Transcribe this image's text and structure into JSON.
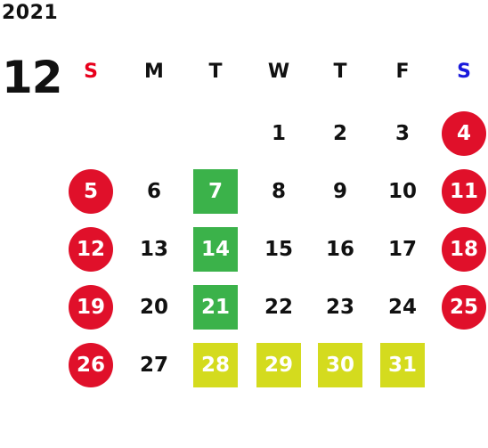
{
  "calendar": {
    "year": "2021",
    "month": "12",
    "weekdays": [
      "S",
      "M",
      "T",
      "W",
      "T",
      "F",
      "S"
    ],
    "colors": {
      "sunday_header": "#e8001c",
      "saturday_header": "#1a1adc",
      "weekday_header": "#111111",
      "holiday_circle": "#e0102a",
      "green_highlight": "#3bb24a",
      "lime_highlight": "#d4db1e",
      "text": "#111111"
    },
    "days": [
      {
        "label": "1",
        "col": 3,
        "week": 0,
        "style": "plain"
      },
      {
        "label": "2",
        "col": 4,
        "week": 0,
        "style": "plain"
      },
      {
        "label": "3",
        "col": 5,
        "week": 0,
        "style": "plain"
      },
      {
        "label": "4",
        "col": 6,
        "week": 0,
        "style": "circle"
      },
      {
        "label": "5",
        "col": 0,
        "week": 1,
        "style": "circle"
      },
      {
        "label": "6",
        "col": 1,
        "week": 1,
        "style": "plain"
      },
      {
        "label": "7",
        "col": 2,
        "week": 1,
        "style": "green"
      },
      {
        "label": "8",
        "col": 3,
        "week": 1,
        "style": "plain"
      },
      {
        "label": "9",
        "col": 4,
        "week": 1,
        "style": "plain"
      },
      {
        "label": "10",
        "col": 5,
        "week": 1,
        "style": "plain"
      },
      {
        "label": "11",
        "col": 6,
        "week": 1,
        "style": "circle"
      },
      {
        "label": "12",
        "col": 0,
        "week": 2,
        "style": "circle"
      },
      {
        "label": "13",
        "col": 1,
        "week": 2,
        "style": "plain"
      },
      {
        "label": "14",
        "col": 2,
        "week": 2,
        "style": "green"
      },
      {
        "label": "15",
        "col": 3,
        "week": 2,
        "style": "plain"
      },
      {
        "label": "16",
        "col": 4,
        "week": 2,
        "style": "plain"
      },
      {
        "label": "17",
        "col": 5,
        "week": 2,
        "style": "plain"
      },
      {
        "label": "18",
        "col": 6,
        "week": 2,
        "style": "circle"
      },
      {
        "label": "19",
        "col": 0,
        "week": 3,
        "style": "circle"
      },
      {
        "label": "20",
        "col": 1,
        "week": 3,
        "style": "plain"
      },
      {
        "label": "21",
        "col": 2,
        "week": 3,
        "style": "green"
      },
      {
        "label": "22",
        "col": 3,
        "week": 3,
        "style": "plain"
      },
      {
        "label": "23",
        "col": 4,
        "week": 3,
        "style": "plain"
      },
      {
        "label": "24",
        "col": 5,
        "week": 3,
        "style": "plain"
      },
      {
        "label": "25",
        "col": 6,
        "week": 3,
        "style": "circle"
      },
      {
        "label": "26",
        "col": 0,
        "week": 4,
        "style": "circle"
      },
      {
        "label": "27",
        "col": 1,
        "week": 4,
        "style": "plain"
      },
      {
        "label": "28",
        "col": 2,
        "week": 4,
        "style": "lime"
      },
      {
        "label": "29",
        "col": 3,
        "week": 4,
        "style": "lime"
      },
      {
        "label": "30",
        "col": 4,
        "week": 4,
        "style": "lime"
      },
      {
        "label": "31",
        "col": 5,
        "week": 4,
        "style": "lime"
      }
    ]
  }
}
